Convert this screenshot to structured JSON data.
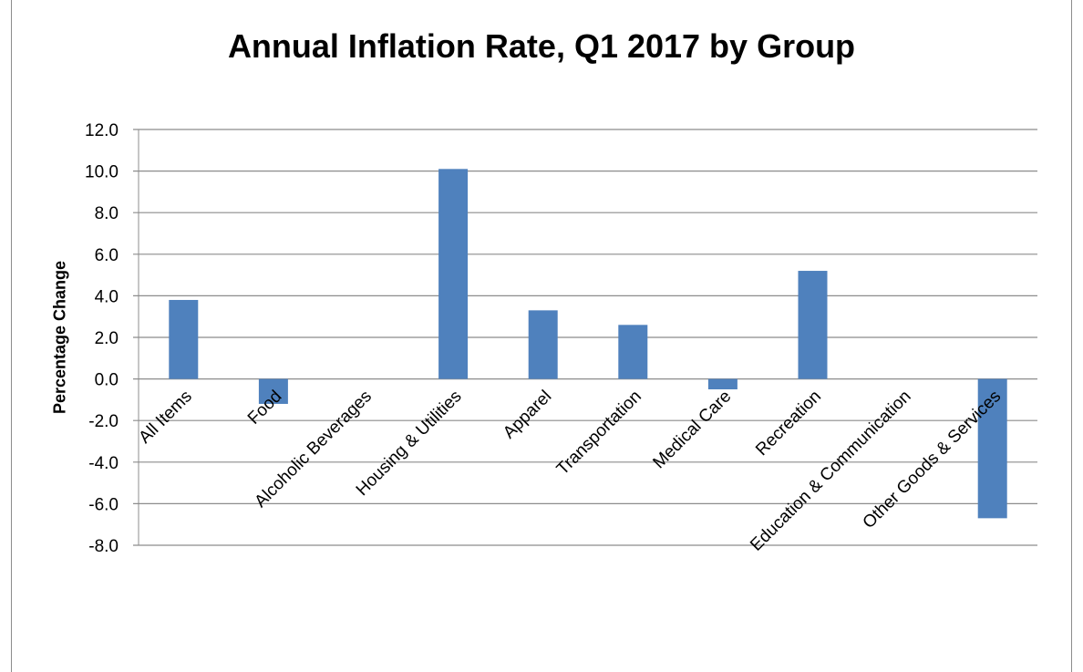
{
  "chart_data": {
    "type": "bar",
    "title": "Annual Inflation Rate, Q1 2017 by Group",
    "xlabel": "",
    "ylabel": "Percentage Change",
    "ylim": [
      -8.0,
      12.0
    ],
    "yticks": [
      "12.0",
      "10.0",
      "8.0",
      "6.0",
      "4.0",
      "2.0",
      "0.0",
      "-2.0",
      "-4.0",
      "-6.0",
      "-8.0"
    ],
    "categories": [
      "All Items",
      "Food",
      "Alcoholic Beverages",
      "Housing & Utilities",
      "Apparel",
      "Transportation",
      "Medical Care",
      "Recreation",
      "Education & Communication",
      "Other Goods & Services"
    ],
    "values": [
      3.8,
      -1.2,
      0.0,
      10.1,
      3.3,
      2.6,
      -0.5,
      5.2,
      0.0,
      -6.7
    ],
    "grid": true,
    "legend": "none",
    "bar_color": "#4f81bd"
  }
}
